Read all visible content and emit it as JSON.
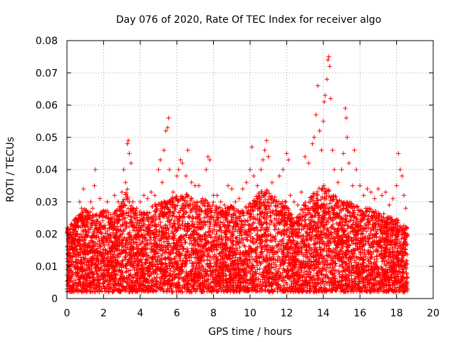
{
  "chart_data": {
    "type": "scatter",
    "title": "Day 076 of 2020, Rate Of TEC Index for receiver algo",
    "xlabel": "GPS time / hours",
    "ylabel": "ROTI / TECUs",
    "xlim": [
      0,
      20
    ],
    "ylim": [
      0,
      0.08
    ],
    "x_ticks": [
      0,
      2,
      4,
      6,
      8,
      10,
      12,
      14,
      16,
      18,
      20
    ],
    "y_ticks": [
      0,
      0.01,
      0.02,
      0.03,
      0.04,
      0.05,
      0.06,
      0.07,
      0.08
    ],
    "x_tick_labels": [
      "0",
      "2",
      "4",
      "6",
      "8",
      "10",
      "12",
      "14",
      "16",
      "18",
      "20"
    ],
    "y_tick_labels": [
      "0",
      "0.01",
      "0.02",
      "0.03",
      "0.04",
      "0.05",
      "0.06",
      "0.07",
      "0.08"
    ],
    "grid": true,
    "marker": "+",
    "series": [
      {
        "name": "ROTI",
        "color": "#ff0000",
        "data_extent_hours": [
          0,
          18.6
        ],
        "points": [
          [
            0.1,
            0.012
          ],
          [
            0.2,
            0.02
          ],
          [
            0.3,
            0.008
          ],
          [
            0.45,
            0.022
          ],
          [
            0.5,
            0.025
          ],
          [
            0.6,
            0.018
          ],
          [
            0.7,
            0.03
          ],
          [
            0.8,
            0.028
          ],
          [
            0.9,
            0.034
          ],
          [
            1.0,
            0.02
          ],
          [
            1.1,
            0.015
          ],
          [
            1.2,
            0.025
          ],
          [
            1.3,
            0.03
          ],
          [
            1.4,
            0.028
          ],
          [
            1.5,
            0.035
          ],
          [
            1.55,
            0.04
          ],
          [
            1.6,
            0.022
          ],
          [
            1.8,
            0.031
          ],
          [
            2.0,
            0.027
          ],
          [
            2.2,
            0.03
          ],
          [
            2.4,
            0.026
          ],
          [
            2.6,
            0.032
          ],
          [
            2.8,
            0.03
          ],
          [
            3.0,
            0.033
          ],
          [
            3.1,
            0.04
          ],
          [
            3.2,
            0.036
          ],
          [
            3.3,
            0.048
          ],
          [
            3.35,
            0.049
          ],
          [
            3.4,
            0.045
          ],
          [
            3.5,
            0.042
          ],
          [
            3.6,
            0.03
          ],
          [
            3.8,
            0.028
          ],
          [
            4.0,
            0.03
          ],
          [
            4.2,
            0.032
          ],
          [
            4.4,
            0.031
          ],
          [
            4.6,
            0.033
          ],
          [
            4.8,
            0.032
          ],
          [
            5.0,
            0.04
          ],
          [
            5.1,
            0.043
          ],
          [
            5.2,
            0.036
          ],
          [
            5.3,
            0.046
          ],
          [
            5.4,
            0.052
          ],
          [
            5.5,
            0.053
          ],
          [
            5.55,
            0.056
          ],
          [
            5.6,
            0.04
          ],
          [
            5.8,
            0.033
          ],
          [
            6.0,
            0.038
          ],
          [
            6.1,
            0.04
          ],
          [
            6.2,
            0.043
          ],
          [
            6.3,
            0.042
          ],
          [
            6.5,
            0.038
          ],
          [
            6.6,
            0.046
          ],
          [
            6.8,
            0.036
          ],
          [
            7.0,
            0.035
          ],
          [
            7.2,
            0.035
          ],
          [
            7.4,
            0.031
          ],
          [
            7.6,
            0.04
          ],
          [
            7.7,
            0.044
          ],
          [
            7.8,
            0.043
          ],
          [
            8.0,
            0.032
          ],
          [
            8.2,
            0.032
          ],
          [
            8.4,
            0.03
          ],
          [
            8.6,
            0.029
          ],
          [
            8.8,
            0.035
          ],
          [
            9.0,
            0.034
          ],
          [
            9.2,
            0.03
          ],
          [
            9.4,
            0.031
          ],
          [
            9.6,
            0.034
          ],
          [
            9.8,
            0.036
          ],
          [
            10.0,
            0.04
          ],
          [
            10.1,
            0.047
          ],
          [
            10.2,
            0.038
          ],
          [
            10.4,
            0.035
          ],
          [
            10.6,
            0.04
          ],
          [
            10.7,
            0.043
          ],
          [
            10.8,
            0.046
          ],
          [
            10.9,
            0.049
          ],
          [
            11.0,
            0.044
          ],
          [
            11.2,
            0.036
          ],
          [
            11.4,
            0.03
          ],
          [
            11.6,
            0.038
          ],
          [
            11.8,
            0.04
          ],
          [
            12.0,
            0.045
          ],
          [
            12.1,
            0.043
          ],
          [
            12.2,
            0.032
          ],
          [
            12.4,
            0.03
          ],
          [
            12.6,
            0.029
          ],
          [
            12.8,
            0.033
          ],
          [
            13.0,
            0.044
          ],
          [
            13.2,
            0.042
          ],
          [
            13.4,
            0.048
          ],
          [
            13.5,
            0.05
          ],
          [
            13.6,
            0.057
          ],
          [
            13.7,
            0.066
          ],
          [
            13.8,
            0.052
          ],
          [
            13.9,
            0.046
          ],
          [
            14.0,
            0.055
          ],
          [
            14.05,
            0.061
          ],
          [
            14.1,
            0.063
          ],
          [
            14.2,
            0.068
          ],
          [
            14.25,
            0.074
          ],
          [
            14.3,
            0.075
          ],
          [
            14.35,
            0.072
          ],
          [
            14.4,
            0.062
          ],
          [
            14.5,
            0.046
          ],
          [
            14.6,
            0.04
          ],
          [
            14.8,
            0.036
          ],
          [
            15.0,
            0.04
          ],
          [
            15.1,
            0.045
          ],
          [
            15.2,
            0.059
          ],
          [
            15.25,
            0.056
          ],
          [
            15.3,
            0.05
          ],
          [
            15.4,
            0.042
          ],
          [
            15.6,
            0.035
          ],
          [
            15.7,
            0.046
          ],
          [
            15.8,
            0.04
          ],
          [
            16.0,
            0.035
          ],
          [
            16.2,
            0.032
          ],
          [
            16.4,
            0.034
          ],
          [
            16.6,
            0.033
          ],
          [
            16.8,
            0.031
          ],
          [
            17.0,
            0.034
          ],
          [
            17.2,
            0.032
          ],
          [
            17.4,
            0.033
          ],
          [
            17.6,
            0.029
          ],
          [
            17.8,
            0.031
          ],
          [
            18.0,
            0.035
          ],
          [
            18.1,
            0.045
          ],
          [
            18.2,
            0.04
          ],
          [
            18.3,
            0.038
          ],
          [
            18.4,
            0.032
          ],
          [
            18.5,
            0.028
          ],
          [
            18.55,
            0.022
          ],
          [
            18.6,
            0.02
          ],
          [
            0.3,
            0.003
          ],
          [
            0.9,
            0.004
          ],
          [
            1.7,
            0.005
          ],
          [
            2.5,
            0.002
          ],
          [
            3.7,
            0.004
          ],
          [
            4.5,
            0.003
          ],
          [
            5.7,
            0.004
          ],
          [
            6.9,
            0.003
          ],
          [
            7.9,
            0.002
          ],
          [
            8.9,
            0.004
          ],
          [
            9.9,
            0.003
          ],
          [
            10.9,
            0.004
          ],
          [
            11.9,
            0.003
          ],
          [
            12.9,
            0.004
          ],
          [
            13.9,
            0.005
          ],
          [
            14.9,
            0.004
          ],
          [
            15.9,
            0.003
          ],
          [
            16.9,
            0.004
          ],
          [
            17.9,
            0.003
          ],
          [
            18.5,
            0.005
          ]
        ],
        "cloud": {
          "description_free": true,
          "n": 7000,
          "seed": 76,
          "envelope": [
            [
              0.0,
              0.022
            ],
            [
              0.5,
              0.025
            ],
            [
              1.0,
              0.028
            ],
            [
              1.5,
              0.026
            ],
            [
              2.0,
              0.028
            ],
            [
              2.5,
              0.026
            ],
            [
              3.0,
              0.03
            ],
            [
              3.3,
              0.034
            ],
            [
              3.6,
              0.028
            ],
            [
              4.0,
              0.027
            ],
            [
              4.5,
              0.028
            ],
            [
              5.0,
              0.03
            ],
            [
              5.5,
              0.031
            ],
            [
              6.0,
              0.032
            ],
            [
              6.5,
              0.033
            ],
            [
              7.0,
              0.03
            ],
            [
              7.5,
              0.031
            ],
            [
              8.0,
              0.03
            ],
            [
              8.5,
              0.028
            ],
            [
              9.0,
              0.029
            ],
            [
              9.5,
              0.027
            ],
            [
              10.0,
              0.03
            ],
            [
              10.5,
              0.033
            ],
            [
              11.0,
              0.034
            ],
            [
              11.5,
              0.031
            ],
            [
              12.0,
              0.03
            ],
            [
              12.5,
              0.025
            ],
            [
              13.0,
              0.03
            ],
            [
              13.5,
              0.033
            ],
            [
              14.0,
              0.036
            ],
            [
              14.5,
              0.033
            ],
            [
              15.0,
              0.03
            ],
            [
              15.5,
              0.03
            ],
            [
              16.0,
              0.028
            ],
            [
              16.5,
              0.028
            ],
            [
              17.0,
              0.027
            ],
            [
              17.5,
              0.026
            ],
            [
              18.0,
              0.025
            ],
            [
              18.6,
              0.022
            ]
          ]
        }
      }
    ]
  }
}
